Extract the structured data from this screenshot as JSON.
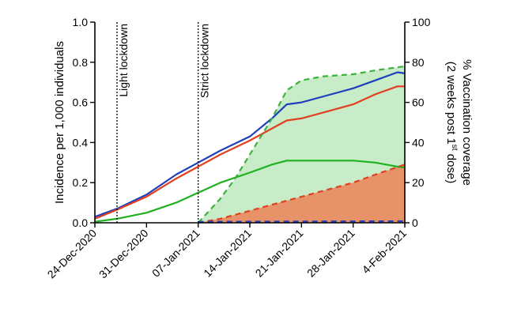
{
  "chart_data": {
    "type": "line",
    "title": "",
    "ylabel_left": "Incidence per 1,000 individuals",
    "ylabel_right_line1": "% Vaccination coverage",
    "ylabel_right_line2_pre": "(2 weeks post 1",
    "ylabel_right_line2_sup": "st",
    "ylabel_right_line2_post": " dose)",
    "ylim_left": [
      0,
      1.0
    ],
    "ylim_right": [
      0,
      100
    ],
    "yticks_left": [
      "0.0",
      "0.2",
      "0.4",
      "0.6",
      "0.8",
      "1.0"
    ],
    "yticks_right": [
      "0",
      "20",
      "40",
      "60",
      "80",
      "100"
    ],
    "x_ticks": [
      "24-Dec-2020",
      "31-Dec-2020",
      "07-Jan-2021",
      "14-Jan-2021",
      "21-Jan-2021",
      "28-Jan-2021",
      "4-Feb-2021"
    ],
    "grid": false,
    "annotations": [
      {
        "label": "Light lockdown",
        "x": "27-Dec-2020"
      },
      {
        "label": "Strict lockdown",
        "x": "07-Jan-2021"
      }
    ],
    "series": [
      {
        "color": "#1f3fbf",
        "style": "solid",
        "axis": "left",
        "x": [
          "24-Dec-2020",
          "27-Dec-2020",
          "31-Dec-2020",
          "04-Jan-2021",
          "07-Jan-2021",
          "10-Jan-2021",
          "14-Jan-2021",
          "17-Jan-2021",
          "19-Jan-2021",
          "21-Jan-2021",
          "24-Jan-2021",
          "28-Jan-2021",
          "31-Jan-2021",
          "03-Feb-2021",
          "04-Feb-2021"
        ],
        "y": [
          0.03,
          0.07,
          0.14,
          0.24,
          0.3,
          0.36,
          0.43,
          0.52,
          0.59,
          0.6,
          0.63,
          0.67,
          0.71,
          0.75,
          0.745
        ]
      },
      {
        "color": "#e04020",
        "style": "solid",
        "axis": "left",
        "x": [
          "24-Dec-2020",
          "27-Dec-2020",
          "31-Dec-2020",
          "04-Jan-2021",
          "07-Jan-2021",
          "10-Jan-2021",
          "14-Jan-2021",
          "17-Jan-2021",
          "19-Jan-2021",
          "21-Jan-2021",
          "24-Jan-2021",
          "28-Jan-2021",
          "31-Jan-2021",
          "03-Feb-2021",
          "04-Feb-2021"
        ],
        "y": [
          0.02,
          0.065,
          0.13,
          0.22,
          0.28,
          0.34,
          0.41,
          0.47,
          0.51,
          0.52,
          0.55,
          0.59,
          0.64,
          0.68,
          0.68
        ]
      },
      {
        "color": "#20b020",
        "style": "solid",
        "axis": "left",
        "x": [
          "24-Dec-2020",
          "27-Dec-2020",
          "31-Dec-2020",
          "04-Jan-2021",
          "07-Jan-2021",
          "10-Jan-2021",
          "14-Jan-2021",
          "17-Jan-2021",
          "19-Jan-2021",
          "21-Jan-2021",
          "24-Jan-2021",
          "28-Jan-2021",
          "31-Jan-2021",
          "03-Feb-2021",
          "04-Feb-2021"
        ],
        "y": [
          0.005,
          0.02,
          0.05,
          0.1,
          0.15,
          0.2,
          0.25,
          0.29,
          0.31,
          0.31,
          0.31,
          0.31,
          0.3,
          0.28,
          0.275
        ]
      },
      {
        "color": "#40b040",
        "style": "dashed",
        "axis": "right",
        "fill": "#c8ecc8",
        "x": [
          "07-Jan-2021",
          "10-Jan-2021",
          "12-Jan-2021",
          "14-Jan-2021",
          "17-Jan-2021",
          "19-Jan-2021",
          "21-Jan-2021",
          "24-Jan-2021",
          "28-Jan-2021",
          "31-Jan-2021",
          "04-Feb-2021"
        ],
        "y": [
          0,
          12,
          22,
          34,
          52,
          66,
          71,
          73,
          74,
          76,
          78
        ]
      },
      {
        "color": "#e04020",
        "style": "dashed",
        "axis": "right",
        "fill": "#e8926a",
        "x": [
          "07-Jan-2021",
          "10-Jan-2021",
          "14-Jan-2021",
          "17-Jan-2021",
          "21-Jan-2021",
          "24-Jan-2021",
          "28-Jan-2021",
          "31-Jan-2021",
          "04-Feb-2021"
        ],
        "y": [
          0,
          2,
          6,
          9,
          13,
          16,
          20,
          24,
          29
        ]
      },
      {
        "color": "#2040c0",
        "style": "dashed",
        "axis": "right",
        "x": [
          "07-Jan-2021",
          "04-Feb-2021"
        ],
        "y": [
          0.5,
          0.8
        ]
      }
    ]
  }
}
